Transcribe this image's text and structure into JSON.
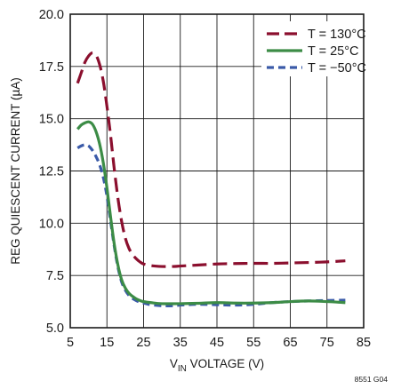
{
  "chart_data": {
    "type": "line",
    "xlabel": "V_IN VOLTAGE (V)",
    "xlabel_main": "V",
    "xlabel_sub": "IN",
    "xlabel_rest": " VOLTAGE (V)",
    "ylabel": "REG QUIESCENT CURRENT (µA)",
    "xlim": [
      5,
      85
    ],
    "ylim": [
      5.0,
      20.0
    ],
    "x_ticks": [
      5,
      15,
      25,
      35,
      45,
      55,
      65,
      75,
      85
    ],
    "x_tick_labels": [
      "5",
      "15",
      "25",
      "35",
      "45",
      "55",
      "65",
      "75",
      "85"
    ],
    "y_ticks": [
      5.0,
      7.5,
      10.0,
      12.5,
      15.0,
      17.5,
      20.0
    ],
    "y_tick_labels": [
      "5.0",
      "7.5",
      "10.0",
      "12.5",
      "15.0",
      "17.5",
      "20.0"
    ],
    "grid": true,
    "legend_position": "top-right",
    "figure_code": "8551 G04",
    "series": [
      {
        "name": "T = 130°C",
        "color": "#8b0f2e",
        "dash": "long-dash",
        "x": [
          7,
          8,
          9,
          10,
          11,
          12,
          13,
          14,
          15,
          16,
          17,
          18,
          19,
          20,
          21,
          22,
          23,
          24,
          25,
          27,
          30,
          33,
          35,
          40,
          45,
          50,
          55,
          60,
          65,
          70,
          75,
          80
        ],
        "y": [
          16.7,
          17.2,
          17.7,
          18.0,
          18.15,
          18.05,
          17.6,
          16.8,
          15.6,
          14.2,
          12.6,
          11.2,
          10.1,
          9.3,
          8.8,
          8.5,
          8.3,
          8.15,
          8.05,
          7.97,
          7.93,
          7.93,
          7.95,
          8.0,
          8.05,
          8.07,
          8.08,
          8.08,
          8.1,
          8.12,
          8.15,
          8.2
        ]
      },
      {
        "name": "T = 25°C",
        "color": "#3c8c46",
        "dash": "solid",
        "x": [
          7,
          8,
          9,
          10,
          11,
          12,
          13,
          14,
          15,
          16,
          17,
          18,
          19,
          20,
          21,
          22,
          23,
          24,
          25,
          27,
          30,
          35,
          40,
          45,
          50,
          55,
          60,
          65,
          70,
          75,
          80
        ],
        "y": [
          14.5,
          14.7,
          14.8,
          14.85,
          14.75,
          14.4,
          13.8,
          12.9,
          11.7,
          10.3,
          9.0,
          8.0,
          7.3,
          6.9,
          6.65,
          6.5,
          6.38,
          6.3,
          6.25,
          6.2,
          6.15,
          6.15,
          6.17,
          6.2,
          6.18,
          6.18,
          6.2,
          6.25,
          6.28,
          6.25,
          6.2
        ]
      },
      {
        "name": "T = −50°C",
        "color": "#3a5aa8",
        "dash": "short-dash",
        "x": [
          7,
          8,
          9,
          10,
          11,
          12,
          13,
          14,
          15,
          16,
          17,
          18,
          19,
          20,
          21,
          22,
          23,
          24,
          25,
          27,
          30,
          33,
          35,
          40,
          45,
          50,
          55,
          60,
          65,
          70,
          75,
          80
        ],
        "y": [
          13.6,
          13.7,
          13.75,
          13.7,
          13.5,
          13.2,
          12.8,
          12.2,
          11.3,
          10.1,
          8.9,
          7.9,
          7.2,
          6.8,
          6.55,
          6.4,
          6.3,
          6.22,
          6.18,
          6.1,
          6.05,
          6.05,
          6.08,
          6.12,
          6.1,
          6.08,
          6.12,
          6.2,
          6.25,
          6.28,
          6.3,
          6.32
        ]
      }
    ]
  }
}
